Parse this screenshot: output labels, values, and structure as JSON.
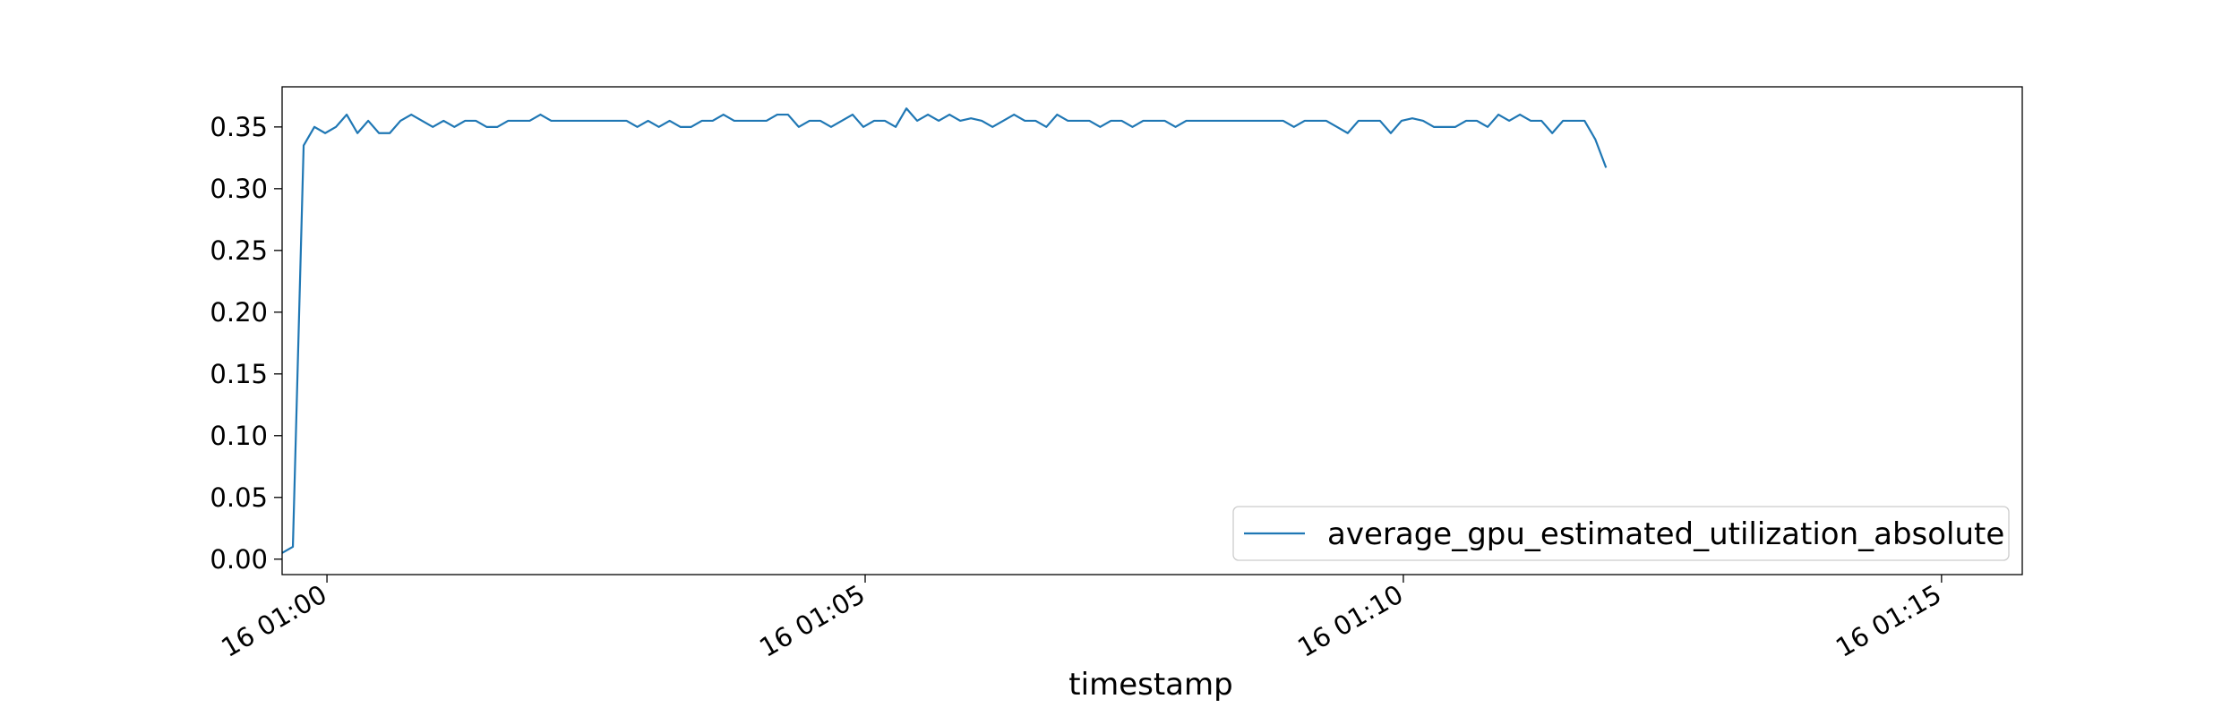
{
  "chart_data": {
    "type": "line",
    "title": "",
    "xlabel": "timestamp",
    "ylabel": "",
    "grid": false,
    "legend_position": "lower-right",
    "x_start": "2024-01-16T00:59:35",
    "x_step_seconds": 6,
    "xlim": [
      "2024-01-16T00:59:35",
      "2024-01-16T01:15:45"
    ],
    "ylim": [
      -0.0125,
      0.3825
    ],
    "x_ticks": [
      {
        "value": "2024-01-16T01:00:00",
        "label": "16 01:00"
      },
      {
        "value": "2024-01-16T01:05:00",
        "label": "16 01:05"
      },
      {
        "value": "2024-01-16T01:10:00",
        "label": "16 01:10"
      },
      {
        "value": "2024-01-16T01:15:00",
        "label": "16 01:15"
      }
    ],
    "y_ticks": [
      {
        "value": 0.0,
        "label": "0.00"
      },
      {
        "value": 0.05,
        "label": "0.05"
      },
      {
        "value": 0.1,
        "label": "0.10"
      },
      {
        "value": 0.15,
        "label": "0.15"
      },
      {
        "value": 0.2,
        "label": "0.20"
      },
      {
        "value": 0.25,
        "label": "0.25"
      },
      {
        "value": 0.3,
        "label": "0.30"
      },
      {
        "value": 0.35,
        "label": "0.35"
      }
    ],
    "series": [
      {
        "name": "average_gpu_estimated_utilization_absolute",
        "color": "#1f77b4",
        "values": [
          0.005,
          0.01,
          0.335,
          0.35,
          0.345,
          0.35,
          0.36,
          0.345,
          0.355,
          0.345,
          0.345,
          0.355,
          0.36,
          0.355,
          0.35,
          0.355,
          0.35,
          0.355,
          0.355,
          0.35,
          0.35,
          0.355,
          0.355,
          0.355,
          0.36,
          0.355,
          0.355,
          0.355,
          0.355,
          0.355,
          0.355,
          0.355,
          0.355,
          0.35,
          0.355,
          0.35,
          0.355,
          0.35,
          0.35,
          0.355,
          0.355,
          0.36,
          0.355,
          0.355,
          0.355,
          0.355,
          0.36,
          0.36,
          0.35,
          0.355,
          0.355,
          0.35,
          0.355,
          0.36,
          0.35,
          0.355,
          0.355,
          0.35,
          0.365,
          0.355,
          0.36,
          0.355,
          0.36,
          0.355,
          0.357,
          0.355,
          0.35,
          0.355,
          0.36,
          0.355,
          0.355,
          0.35,
          0.36,
          0.355,
          0.355,
          0.355,
          0.35,
          0.355,
          0.355,
          0.35,
          0.355,
          0.355,
          0.355,
          0.35,
          0.355,
          0.355,
          0.355,
          0.355,
          0.355,
          0.355,
          0.355,
          0.355,
          0.355,
          0.355,
          0.35,
          0.355,
          0.355,
          0.355,
          0.35,
          0.345,
          0.355,
          0.355,
          0.355,
          0.345,
          0.355,
          0.357,
          0.355,
          0.35,
          0.35,
          0.35,
          0.355,
          0.355,
          0.35,
          0.36,
          0.355,
          0.36,
          0.355,
          0.355,
          0.345,
          0.355,
          0.355,
          0.355,
          0.34,
          0.317
        ]
      }
    ]
  }
}
